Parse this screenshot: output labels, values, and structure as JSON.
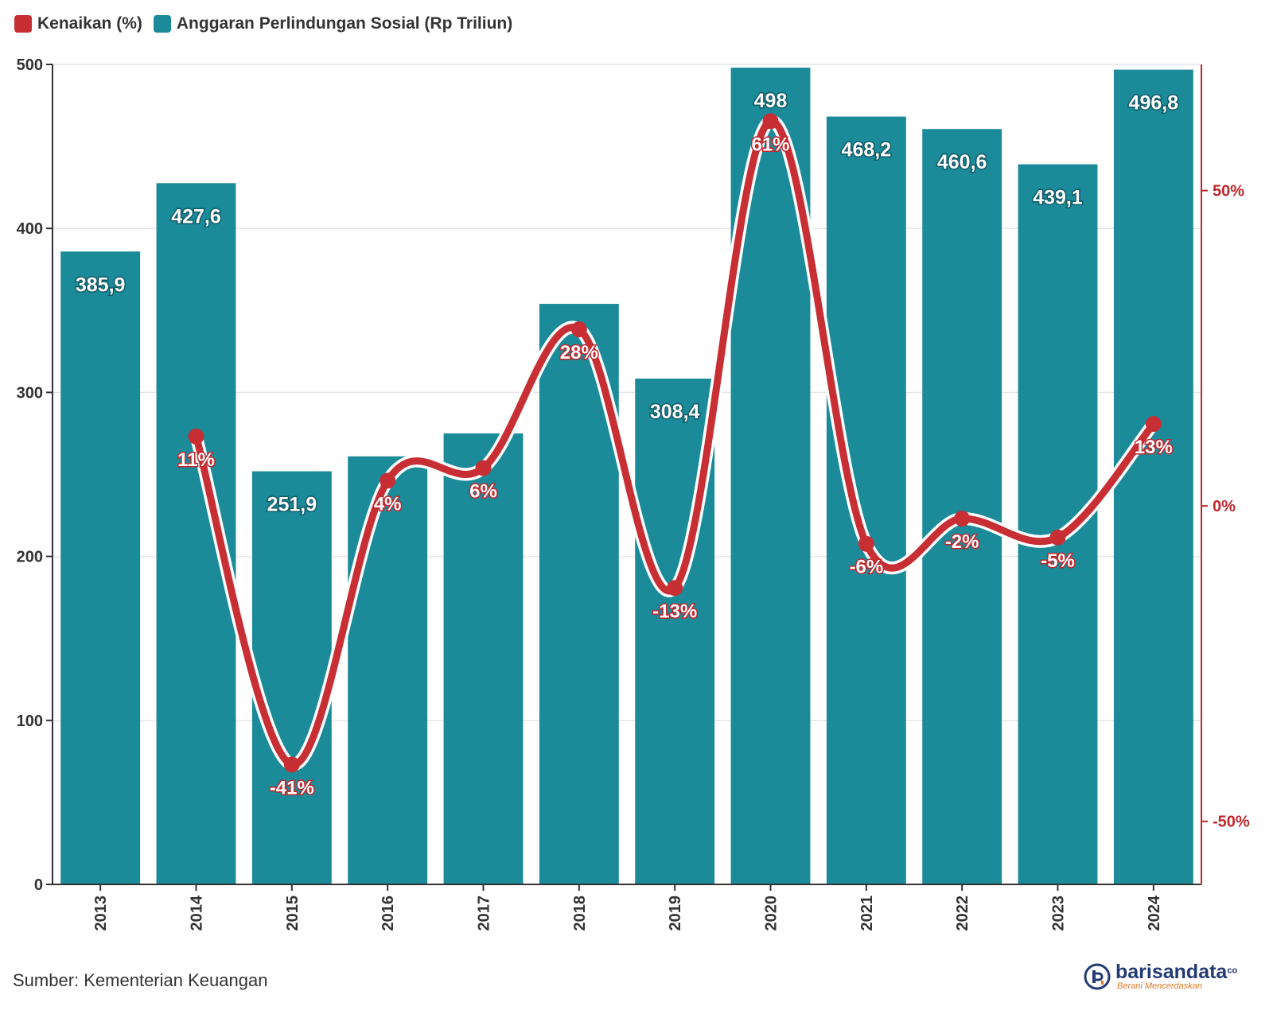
{
  "legend": {
    "line_label": "Kenaikan (%)",
    "bar_label": "Anggaran Perlindungan Sosial (Rp Triliun)"
  },
  "source": "Sumber: Kementerian Keuangan",
  "logo": {
    "name": "barisandata",
    "suffix": "co",
    "tagline": "Berani Mencerdaskan"
  },
  "colors": {
    "bar": "#1b8a99",
    "line": "#c72f34",
    "line_outline": "#ffffff",
    "grid": "#e6e6e6",
    "right_axis": "#c0272d"
  },
  "chart_data": {
    "type": "bar+line",
    "categories": [
      "2013",
      "2014",
      "2015",
      "2016",
      "2017",
      "2018",
      "2019",
      "2020",
      "2021",
      "2022",
      "2023",
      "2024"
    ],
    "series": [
      {
        "name": "Anggaran Perlindungan Sosial (Rp Triliun)",
        "type": "bar",
        "axis": "left",
        "values": [
          385.9,
          427.6,
          251.9,
          261.0,
          275.0,
          354.0,
          308.4,
          498.0,
          468.2,
          460.6,
          439.1,
          496.8
        ],
        "labels": [
          "385,9",
          "427,6",
          "251,9",
          "",
          "",
          "",
          "308,4",
          "498",
          "468,2",
          "460,6",
          "439,1",
          "496,8"
        ]
      },
      {
        "name": "Kenaikan (%)",
        "type": "line",
        "axis": "right",
        "values": [
          null,
          11,
          -41,
          4,
          6,
          28,
          -13,
          61,
          -6,
          -2,
          -5,
          13
        ],
        "labels": [
          "",
          "11%",
          "-41%",
          "4%",
          "6%",
          "28%",
          "-13%",
          "61%",
          "-6%",
          "-2%",
          "-5%",
          "13%"
        ]
      }
    ],
    "y_left": {
      "min": 0,
      "max": 500,
      "ticks": [
        0,
        100,
        200,
        300,
        400,
        500
      ],
      "tick_labels": [
        "0",
        "100",
        "200",
        "300",
        "400",
        "500"
      ]
    },
    "y_right": {
      "min": -60,
      "max": 70,
      "ticks": [
        -50,
        0,
        50
      ],
      "tick_labels": [
        "-50%",
        "0%",
        "50%"
      ]
    },
    "grid": true,
    "legend_position": "top-left"
  }
}
